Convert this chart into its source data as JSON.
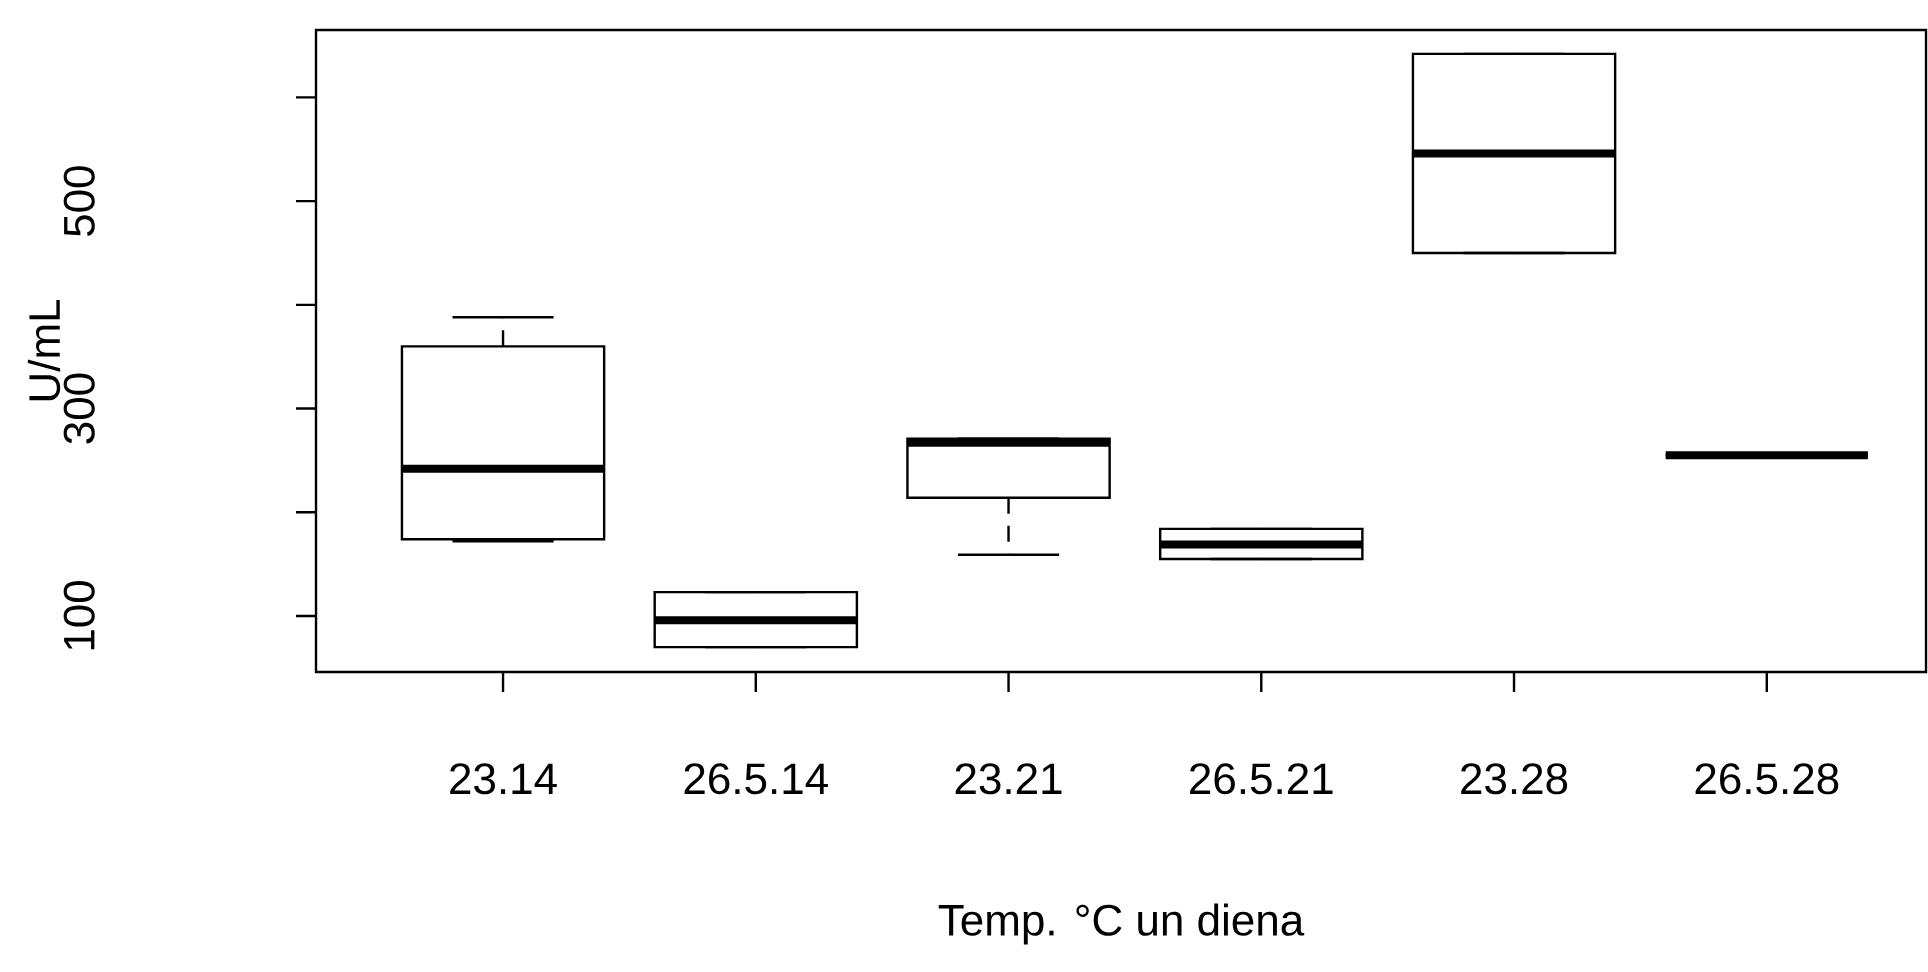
{
  "chart_data": {
    "type": "box",
    "xlabel": "Temp. °C un diena",
    "ylabel": "U/mL",
    "categories": [
      "23.14",
      "26.5.14",
      "23.21",
      "26.5.21",
      "23.28",
      "26.5.28"
    ],
    "boxes": [
      {
        "low": 172,
        "q1": 174,
        "median": 242,
        "q3": 360,
        "high": 388
      },
      {
        "low": 70,
        "q1": 70,
        "median": 96,
        "q3": 123,
        "high": 123
      },
      {
        "low": 159,
        "q1": 214,
        "median": 267,
        "q3": 271,
        "high": 271
      },
      {
        "low": 155,
        "q1": 155,
        "median": 169,
        "q3": 184,
        "high": 184
      },
      {
        "low": 450,
        "q1": 450,
        "median": 546,
        "q3": 642,
        "high": 642
      },
      {
        "low": 255,
        "q1": 255,
        "median": 255,
        "q3": 255,
        "high": 255
      }
    ],
    "ylim": [
      46,
      665
    ],
    "yticks": [
      100,
      {
        "value": 200,
        "label": null
      },
      300,
      {
        "value": 400,
        "label": null
      },
      500,
      {
        "value": 600,
        "label": null
      }
    ]
  }
}
